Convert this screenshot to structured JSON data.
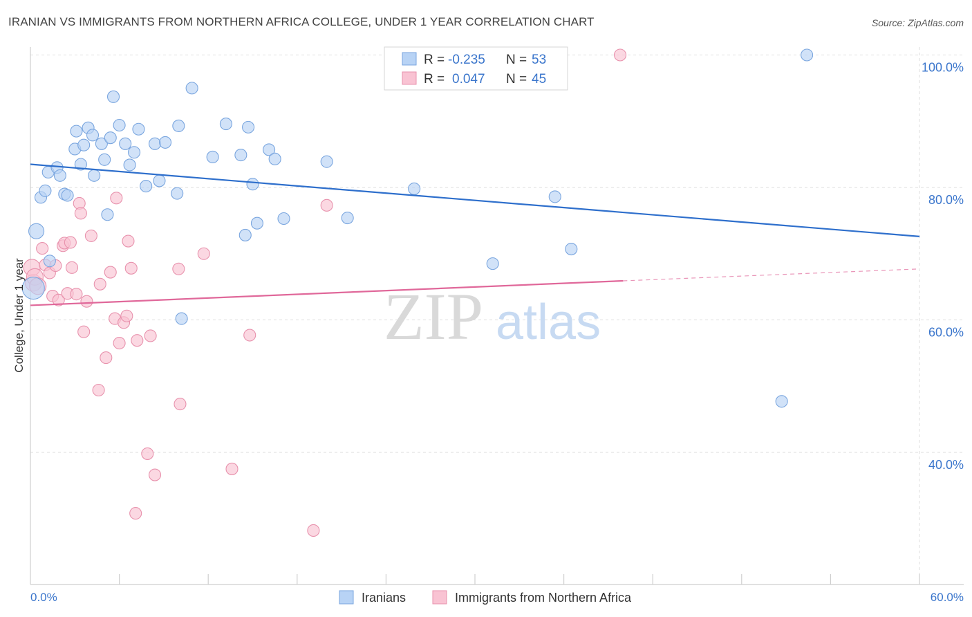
{
  "title": "IRANIAN VS IMMIGRANTS FROM NORTHERN AFRICA COLLEGE, UNDER 1 YEAR CORRELATION CHART",
  "source": "Source: ZipAtlas.com",
  "watermark": {
    "zip": "ZIP",
    "atlas": "atlas"
  },
  "legend_top": [
    {
      "r_label": "R =",
      "r_value": "-0.235",
      "n_label": "N =",
      "n_value": "53"
    },
    {
      "r_label": "R =",
      "r_value": "0.047",
      "n_label": "N =",
      "n_value": "45"
    }
  ],
  "colors": {
    "blue_fill": "#b8d3f5",
    "blue_stroke": "#7aa6df",
    "blue_line": "#2e6fcc",
    "pink_fill": "#f9c3d3",
    "pink_stroke": "#e892ad",
    "pink_line": "#e0689a",
    "axis_text": "#3b76cc",
    "grid": "#dddddd"
  },
  "chart_data": {
    "type": "scatter",
    "xlabel": "",
    "ylabel": "College, Under 1 year",
    "xlim": [
      0,
      60
    ],
    "ylim": [
      20,
      102
    ],
    "x_tick_labels": [
      "0.0%",
      "60.0%"
    ],
    "y_ticks": [
      40,
      60,
      80,
      100
    ],
    "y_tick_labels": [
      "40.0%",
      "60.0%",
      "80.0%",
      "100.0%"
    ],
    "grid": true,
    "legend_placement": "bottom-center",
    "series": [
      {
        "name": "Iranians",
        "color": "#b8d3f5",
        "points": [
          [
            0.2,
            64.8
          ],
          [
            0.4,
            73.4
          ],
          [
            0.7,
            78.5
          ],
          [
            1.0,
            79.5
          ],
          [
            1.3,
            68.9
          ],
          [
            1.2,
            82.3
          ],
          [
            1.8,
            83.0
          ],
          [
            2.0,
            81.8
          ],
          [
            2.3,
            79.0
          ],
          [
            2.5,
            78.8
          ],
          [
            3.0,
            85.8
          ],
          [
            3.1,
            88.5
          ],
          [
            3.4,
            83.5
          ],
          [
            3.6,
            86.4
          ],
          [
            3.9,
            89.0
          ],
          [
            4.2,
            87.9
          ],
          [
            4.3,
            81.8
          ],
          [
            4.8,
            86.6
          ],
          [
            5.0,
            84.2
          ],
          [
            5.2,
            75.9
          ],
          [
            5.4,
            87.5
          ],
          [
            5.6,
            93.7
          ],
          [
            6.0,
            89.4
          ],
          [
            6.4,
            86.6
          ],
          [
            6.7,
            83.4
          ],
          [
            7.0,
            85.3
          ],
          [
            7.3,
            88.8
          ],
          [
            7.8,
            80.2
          ],
          [
            8.4,
            86.6
          ],
          [
            8.7,
            81.0
          ],
          [
            9.1,
            86.8
          ],
          [
            9.9,
            79.1
          ],
          [
            10.0,
            89.3
          ],
          [
            10.2,
            60.2
          ],
          [
            10.9,
            95.0
          ],
          [
            12.3,
            84.6
          ],
          [
            13.2,
            89.6
          ],
          [
            14.2,
            84.9
          ],
          [
            14.5,
            72.8
          ],
          [
            14.7,
            89.1
          ],
          [
            15.0,
            80.5
          ],
          [
            15.3,
            74.6
          ],
          [
            16.1,
            85.7
          ],
          [
            16.5,
            84.3
          ],
          [
            17.1,
            75.3
          ],
          [
            20.0,
            83.9
          ],
          [
            21.4,
            75.4
          ],
          [
            25.9,
            79.8
          ],
          [
            31.2,
            68.5
          ],
          [
            35.4,
            78.6
          ],
          [
            36.5,
            70.7
          ],
          [
            50.7,
            47.7
          ],
          [
            52.4,
            100.0
          ]
        ],
        "trend": {
          "x": [
            0,
            60
          ],
          "y": [
            83.5,
            72.6
          ]
        }
      },
      {
        "name": "Immigrants from Northern Africa",
        "color": "#f9c3d3",
        "points": [
          [
            0.1,
            67.9
          ],
          [
            0.2,
            65.6
          ],
          [
            0.3,
            66.5
          ],
          [
            0.5,
            65.1
          ],
          [
            0.8,
            70.8
          ],
          [
            1.0,
            68.3
          ],
          [
            1.3,
            67.1
          ],
          [
            1.5,
            63.6
          ],
          [
            1.7,
            68.2
          ],
          [
            1.9,
            63.0
          ],
          [
            2.2,
            71.2
          ],
          [
            2.3,
            71.6
          ],
          [
            2.5,
            64.0
          ],
          [
            2.7,
            71.7
          ],
          [
            2.8,
            67.9
          ],
          [
            3.1,
            63.9
          ],
          [
            3.3,
            77.6
          ],
          [
            3.4,
            76.1
          ],
          [
            3.6,
            58.2
          ],
          [
            3.8,
            62.8
          ],
          [
            4.1,
            72.7
          ],
          [
            4.6,
            49.4
          ],
          [
            4.7,
            65.4
          ],
          [
            5.1,
            54.3
          ],
          [
            5.4,
            67.2
          ],
          [
            5.7,
            60.2
          ],
          [
            5.8,
            78.4
          ],
          [
            6.0,
            56.5
          ],
          [
            6.3,
            59.6
          ],
          [
            6.5,
            60.6
          ],
          [
            6.6,
            71.9
          ],
          [
            6.8,
            67.8
          ],
          [
            7.1,
            30.8
          ],
          [
            7.2,
            56.9
          ],
          [
            7.9,
            39.8
          ],
          [
            8.1,
            57.6
          ],
          [
            8.4,
            36.6
          ],
          [
            10.0,
            67.7
          ],
          [
            10.1,
            47.3
          ],
          [
            11.7,
            70.0
          ],
          [
            13.6,
            37.5
          ],
          [
            14.8,
            57.7
          ],
          [
            19.1,
            28.2
          ],
          [
            20.0,
            77.3
          ],
          [
            39.8,
            100.0
          ]
        ],
        "trend": {
          "x": [
            0,
            40
          ],
          "y": [
            62.2,
            65.9
          ]
        },
        "trend_extension": {
          "x": [
            40,
            60
          ],
          "y": [
            65.9,
            67.7
          ]
        }
      }
    ]
  }
}
